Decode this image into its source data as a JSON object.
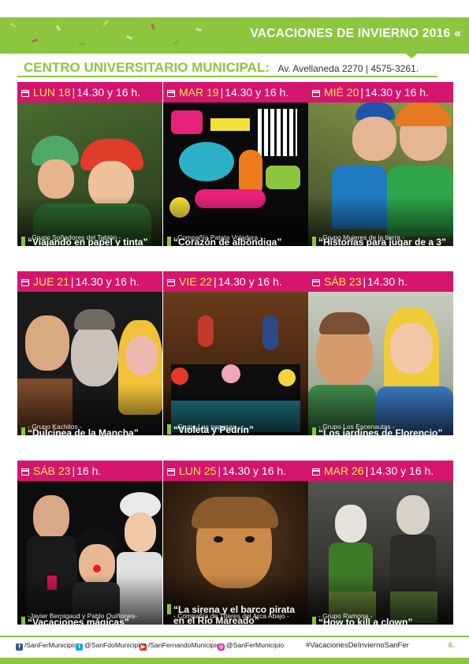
{
  "header": {
    "title": "VACACIONES DE INVIERNO 2016 «"
  },
  "venue": {
    "name": "CENTRO UNIVERSITARIO MUNICIPAL:",
    "address": "Av. Avellaneda 2270 | 4575-3261."
  },
  "colors": {
    "green": "#8cc63f",
    "magenta": "#d5156d",
    "yellow": "#f7e94a"
  },
  "events": [
    {
      "day": "LUN 18",
      "time": "14.30 y 16 h.",
      "title": "“Viajando en papel y tinta”",
      "group": "- Grupo Soñadores del Tablón -"
    },
    {
      "day": "MAR 19",
      "time": "14.30 y 16 h.",
      "title": "“Corazón de albóndiga”",
      "group": "- Compañía Patata Voladora -"
    },
    {
      "day": "MIÉ 20",
      "time": "14.30 y 16 h.",
      "title": "“Historias para jugar de a 3”",
      "group": "- Grupo Mujeres de la tierra -"
    },
    {
      "day": "JUE 21",
      "time": "14.30 y 16 h.",
      "title": "“Dulcinea de la Mancha”",
      "group": "- Grupo Kachitos -"
    },
    {
      "day": "VIE 22",
      "time": "14.30 y 16 h.",
      "title": "“Violeta y Pedrín”",
      "group": "- Grupo Las papusas -"
    },
    {
      "day": "SÁB 23",
      "time": "14.30 h.",
      "title": "“Los jardines de Florencio”",
      "group": "- Grupo Los Escenautas -"
    },
    {
      "day": "SÁB 23",
      "time": "16 h.",
      "title": "“Vacaciones mágicas”",
      "group": "-Javier Bernigaud y Pablo Quiñones-"
    },
    {
      "day": "LUN 25",
      "time": "14.30 y 16 h.",
      "title": "“La sirena y el barco pirata en el Río Mareado”",
      "group": "- Compañía de Títeres del Arca Abajo -"
    },
    {
      "day": "MAR 26",
      "time": "14.30 y 16 h.",
      "title": "“How to kill a clown”",
      "group": "- Grupo Ramona -"
    }
  ],
  "footer": {
    "facebook": "/SanFerMunicipio",
    "twitter": "@SanFdoMunicipio",
    "youtube": "/SanFernandoMunicipio",
    "instagram": "@SanFerMunicipio",
    "hashtag": "#VacacionesDeInviernoSanFer",
    "page": "6."
  }
}
